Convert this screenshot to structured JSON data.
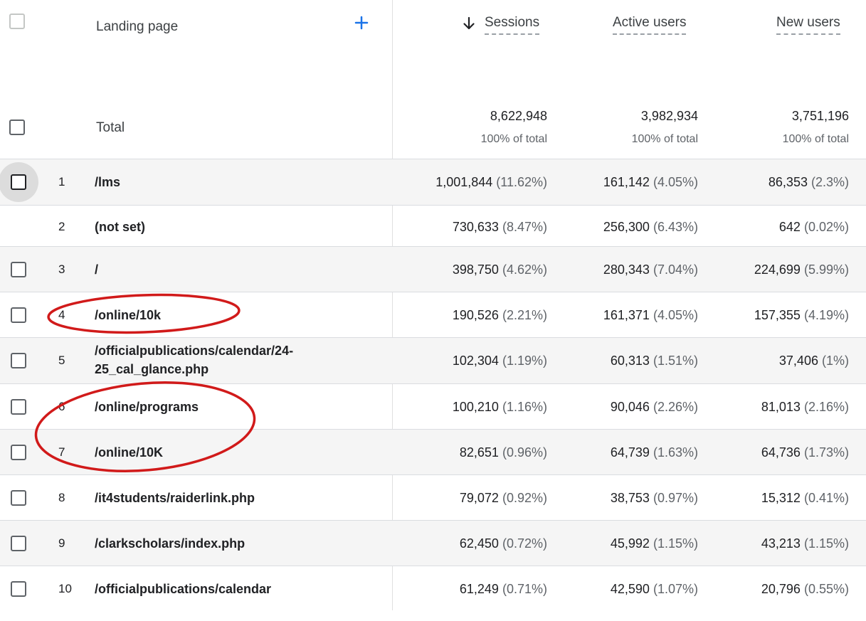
{
  "header": {
    "landing_page_label": "Landing page",
    "sessions_label": "Sessions",
    "active_users_label": "Active users",
    "new_users_label": "New users"
  },
  "total": {
    "label": "Total",
    "sessions": "8,622,948",
    "sessions_pct": "100% of total",
    "active_users": "3,982,934",
    "active_users_pct": "100% of total",
    "new_users": "3,751,196",
    "new_users_pct": "100% of total"
  },
  "rows": [
    {
      "rank": "1",
      "page": "/lms",
      "sessions": "1,001,844",
      "sessions_pct": "(11.62%)",
      "active": "161,142",
      "active_pct": "(4.05%)",
      "new": "86,353",
      "new_pct": "(2.3%)"
    },
    {
      "rank": "2",
      "page": "(not set)",
      "sessions": "730,633",
      "sessions_pct": "(8.47%)",
      "active": "256,300",
      "active_pct": "(6.43%)",
      "new": "642",
      "new_pct": "(0.02%)"
    },
    {
      "rank": "3",
      "page": "/",
      "sessions": "398,750",
      "sessions_pct": "(4.62%)",
      "active": "280,343",
      "active_pct": "(7.04%)",
      "new": "224,699",
      "new_pct": "(5.99%)"
    },
    {
      "rank": "4",
      "page": "/online/10k",
      "sessions": "190,526",
      "sessions_pct": "(2.21%)",
      "active": "161,371",
      "active_pct": "(4.05%)",
      "new": "157,355",
      "new_pct": "(4.19%)"
    },
    {
      "rank": "5",
      "page_line1": "/officialpublications/calendar/24-",
      "page_line2": "25_cal_glance.php",
      "sessions": "102,304",
      "sessions_pct": "(1.19%)",
      "active": "60,313",
      "active_pct": "(1.51%)",
      "new": "37,406",
      "new_pct": "(1%)"
    },
    {
      "rank": "6",
      "page": "/online/programs",
      "sessions": "100,210",
      "sessions_pct": "(1.16%)",
      "active": "90,046",
      "active_pct": "(2.26%)",
      "new": "81,013",
      "new_pct": "(2.16%)"
    },
    {
      "rank": "7",
      "page": "/online/10K",
      "sessions": "82,651",
      "sessions_pct": "(0.96%)",
      "active": "64,739",
      "active_pct": "(1.63%)",
      "new": "64,736",
      "new_pct": "(1.73%)"
    },
    {
      "rank": "8",
      "page": "/it4students/raiderlink.php",
      "sessions": "79,072",
      "sessions_pct": "(0.92%)",
      "active": "38,753",
      "active_pct": "(0.97%)",
      "new": "15,312",
      "new_pct": "(0.41%)"
    },
    {
      "rank": "9",
      "page": "/clarkscholars/index.php",
      "sessions": "62,450",
      "sessions_pct": "(0.72%)",
      "active": "45,992",
      "active_pct": "(1.15%)",
      "new": "43,213",
      "new_pct": "(1.15%)"
    },
    {
      "rank": "10",
      "page": "/officialpublications/calendar",
      "sessions": "61,249",
      "sessions_pct": "(0.71%)",
      "active": "42,590",
      "active_pct": "(1.07%)",
      "new": "20,796",
      "new_pct": "(0.55%)"
    }
  ],
  "colors": {
    "accent_blue": "#1a73e8",
    "annotation_red": "#d11a1a"
  },
  "icons": {
    "add": "plus-icon",
    "sort": "arrow-down-icon"
  }
}
